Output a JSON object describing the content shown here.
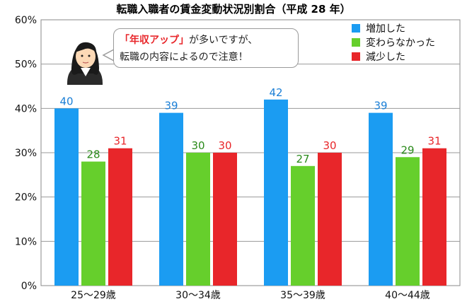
{
  "chart_data": {
    "type": "bar",
    "title": "転職入職者の賃金変動状況別割合（平成 28 年）",
    "categories": [
      "25〜29歳",
      "30〜34歳",
      "35〜39歳",
      "40〜44歳"
    ],
    "series": [
      {
        "name": "増加した",
        "values": [
          40,
          39,
          42,
          39
        ],
        "color": "#1b9cf2"
      },
      {
        "name": "変わらなかった",
        "values": [
          28,
          30,
          27,
          29
        ],
        "color": "#66cf2c"
      },
      {
        "name": "減少した",
        "values": [
          31,
          30,
          30,
          31
        ],
        "color": "#e8262a"
      }
    ],
    "ylim": [
      0,
      60
    ],
    "yticks": [
      "0%",
      "10%",
      "20%",
      "30%",
      "40%",
      "50%",
      "60%"
    ],
    "grid": true,
    "legend_position": "top-right",
    "label_colors": [
      "#1b7fd6",
      "#2a8a1a",
      "#e8262a"
    ]
  },
  "callout": {
    "highlight": "「年収アップ」",
    "line1_rest": "が多いですが、",
    "line2": "転職の内容によるので注意！"
  },
  "icons": {
    "person": "businesswoman-icon"
  }
}
